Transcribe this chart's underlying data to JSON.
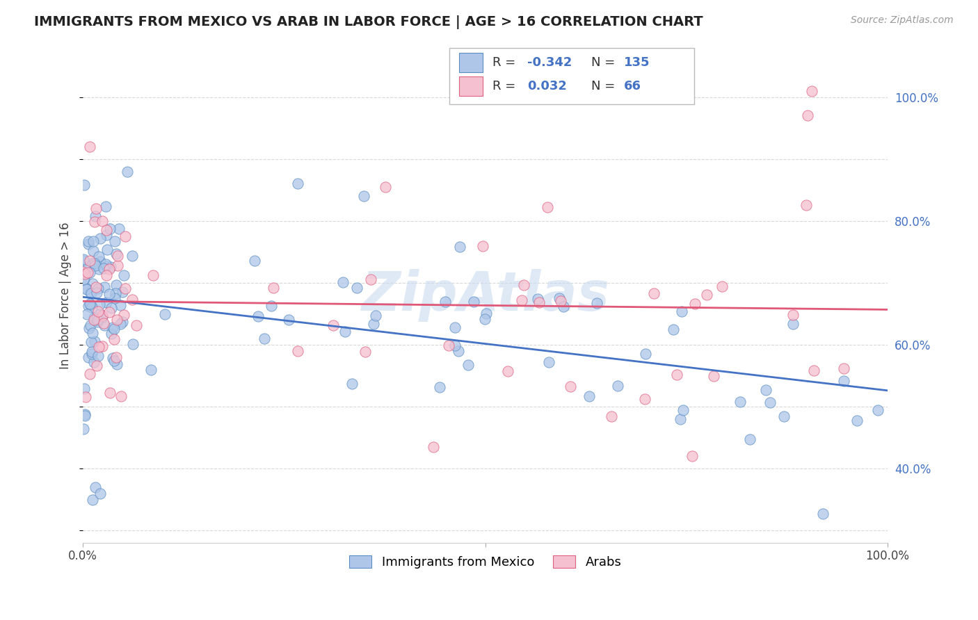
{
  "title": "IMMIGRANTS FROM MEXICO VS ARAB IN LABOR FORCE | AGE > 16 CORRELATION CHART",
  "source": "Source: ZipAtlas.com",
  "ylabel": "In Labor Force | Age > 16",
  "xlim": [
    0,
    1
  ],
  "ylim": [
    0.28,
    1.08
  ],
  "y_ticks_right": [
    0.4,
    0.6,
    0.8,
    1.0
  ],
  "y_tick_labels_right": [
    "40.0%",
    "60.0%",
    "80.0%",
    "100.0%"
  ],
  "mexico_color": "#aec6e8",
  "mexico_edge_color": "#5b8ec4",
  "arab_color": "#f5c0d0",
  "arab_edge_color": "#e06080",
  "mexico_line_color": "#4472c4",
  "arab_line_color": "#e05878",
  "mexico_R": -0.342,
  "mexico_N": 135,
  "arab_R": 0.032,
  "arab_N": 66,
  "watermark": "ZipAtlas",
  "background_color": "#ffffff",
  "grid_color": "#d8d8d8",
  "legend_text_color": "#4472c4",
  "legend_label_color": "#333333"
}
